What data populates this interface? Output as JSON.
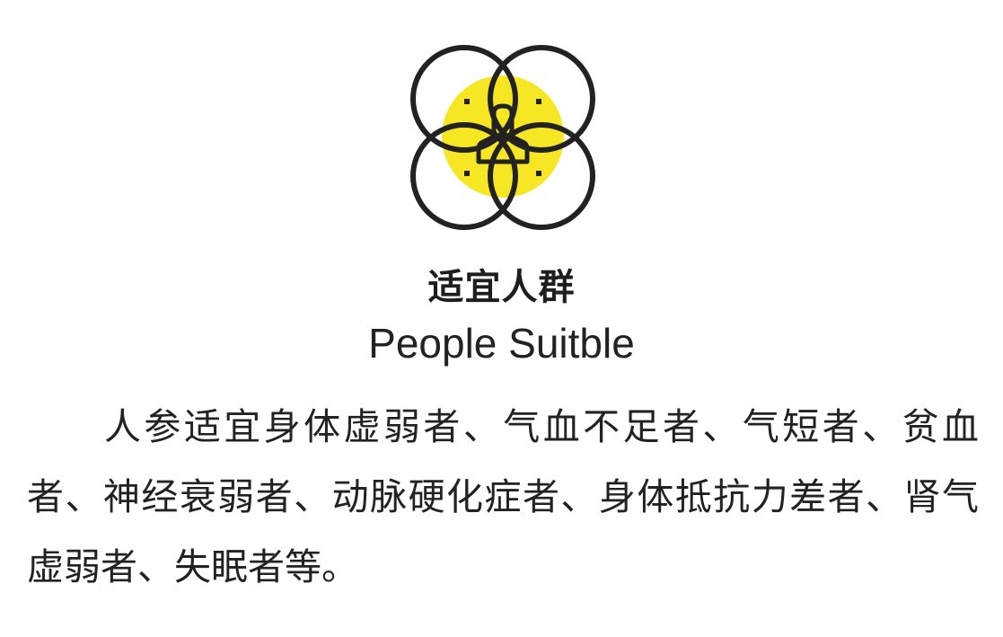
{
  "section": {
    "icon": "overlapping-circles-person-icon",
    "accent_color": "#f7e623",
    "stroke_color": "#222222",
    "title_cn": "适宜人群",
    "title_en": "People Suitble",
    "description": "人参适宜身体虚弱者、气血不足者、气短者、贫血者、神经衰弱者、动脉硬化症者、身体抵抗力差者、肾气虚弱者、失眠者等。"
  }
}
